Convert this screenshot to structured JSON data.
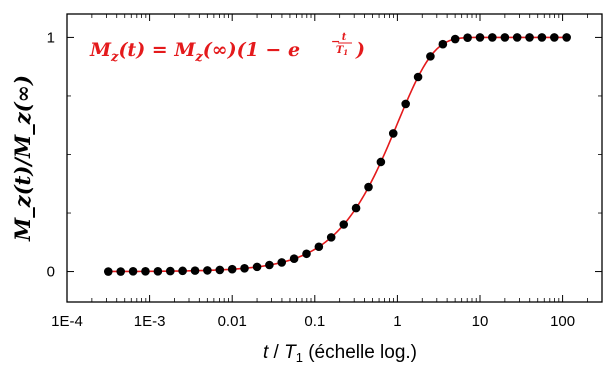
{
  "chart_data": {
    "type": "scatter",
    "title": "",
    "xlabel_parts": {
      "t": "t",
      "slash": " / ",
      "T": "T",
      "sub": "1",
      "rest": " (échelle log.)"
    },
    "ylabel": "M_z(t)/M_z(∞)",
    "xscale": "log",
    "xlim": [
      0.0001,
      300
    ],
    "ylim": [
      -0.13,
      1.1
    ],
    "xticks": [
      0.0001,
      0.001,
      0.01,
      0.1,
      1,
      10,
      100
    ],
    "xtick_labels": [
      "1E-4",
      "1E-3",
      "0.01",
      "0.1",
      "1",
      "10",
      "100"
    ],
    "yticks": [
      0,
      1
    ],
    "ytick_labels": [
      "0",
      "1"
    ],
    "grid": false,
    "annotation": {
      "lhs": "M",
      "lhs_sub": "z",
      "lhs_arg": "(t) = ",
      "rhs": "M",
      "rhs_sub": "z",
      "rhs_arg": "(∞)(1 − e",
      "exp_minus": "−",
      "exp_num": "t",
      "exp_den": "T",
      "exp_den_sub": "1",
      "close": ")",
      "color": "#e41a1c",
      "position": "top-left"
    },
    "series": [
      {
        "kind": "points",
        "color": "#000000",
        "x": [
          0.000316,
          0.000447,
          0.000631,
          0.000891,
          0.00126,
          0.00178,
          0.00251,
          0.00355,
          0.00501,
          0.00708,
          0.01,
          0.0141,
          0.02,
          0.0282,
          0.0398,
          0.0562,
          0.0794,
          0.112,
          0.158,
          0.224,
          0.316,
          0.447,
          0.631,
          0.891,
          1.26,
          1.78,
          2.51,
          3.55,
          5.01,
          7.08,
          10,
          14.1,
          20,
          28.2,
          39.8,
          56.2,
          79.4,
          112
        ],
        "y": [
          0.0,
          0.0,
          0.001,
          0.001,
          0.001,
          0.002,
          0.003,
          0.004,
          0.005,
          0.007,
          0.01,
          0.014,
          0.02,
          0.028,
          0.039,
          0.055,
          0.076,
          0.106,
          0.146,
          0.201,
          0.271,
          0.361,
          0.468,
          0.59,
          0.716,
          0.831,
          0.919,
          0.971,
          0.993,
          0.999,
          1.0,
          1.0,
          1.0,
          1.0,
          1.0,
          1.0,
          1.0,
          1.0
        ]
      },
      {
        "kind": "line",
        "color": "#e41a1c",
        "function": "1 - exp(-x)"
      }
    ]
  }
}
